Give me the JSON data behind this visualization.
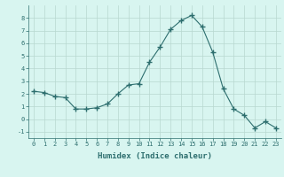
{
  "x": [
    0,
    1,
    2,
    3,
    4,
    5,
    6,
    7,
    8,
    9,
    10,
    11,
    12,
    13,
    14,
    15,
    16,
    17,
    18,
    19,
    20,
    21,
    22,
    23
  ],
  "y": [
    2.2,
    2.1,
    1.8,
    1.7,
    0.8,
    0.8,
    0.9,
    1.2,
    2.0,
    2.7,
    2.8,
    4.5,
    5.7,
    7.1,
    7.8,
    8.2,
    7.3,
    5.3,
    2.4,
    0.8,
    0.3,
    -0.7,
    -0.2,
    -0.7
  ],
  "line_color": "#2d6e6e",
  "marker": "+",
  "marker_size": 4,
  "bg_color": "#d8f5f0",
  "grid_color": "#b8d8d0",
  "xlabel": "Humidex (Indice chaleur)",
  "xlim": [
    -0.5,
    23.5
  ],
  "ylim": [
    -1.5,
    9.0
  ],
  "yticks": [
    -1,
    0,
    1,
    2,
    3,
    4,
    5,
    6,
    7,
    8
  ],
  "xticks": [
    0,
    1,
    2,
    3,
    4,
    5,
    6,
    7,
    8,
    9,
    10,
    11,
    12,
    13,
    14,
    15,
    16,
    17,
    18,
    19,
    20,
    21,
    22,
    23
  ],
  "label_fontsize": 6.5,
  "tick_fontsize": 5.0
}
